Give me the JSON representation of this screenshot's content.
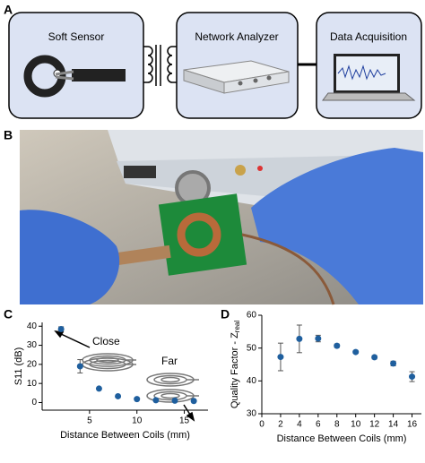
{
  "panels": [
    "A",
    "B",
    "C",
    "D"
  ],
  "diagram": {
    "boxes": [
      "Soft Sensor",
      "Network Analyzer",
      "Data Acquisition"
    ]
  },
  "chart_data": [
    {
      "type": "scatter",
      "color": "#1f5f9e",
      "xlabel": "Distance Between Coils (mm)",
      "ylabel": "S11 (dB)",
      "annotations": [
        "Close",
        "Far"
      ],
      "x": [
        2,
        4,
        6,
        8,
        10,
        12,
        14,
        16
      ],
      "values": [
        38.5,
        19,
        7.3,
        3.3,
        1.8,
        1.2,
        1.0,
        0.8
      ],
      "errors": [
        1.2,
        3.5,
        0.4,
        0.3,
        0.2,
        0.2,
        0.2,
        0.3
      ],
      "xlim": [
        0,
        17.5
      ],
      "xticks": [
        5,
        10,
        15
      ],
      "ylim": [
        -4,
        42
      ],
      "yticks": [
        0,
        10,
        20,
        30,
        40
      ]
    },
    {
      "type": "scatter",
      "color": "#1f5f9e",
      "xlabel": "Distance Between Coils (mm)",
      "ylabel": "Quality Factor - Z",
      "ylabel_sub": "real",
      "x": [
        2,
        4,
        6,
        8,
        10,
        12,
        14,
        16
      ],
      "values": [
        47.3,
        52.8,
        52.9,
        50.7,
        48.8,
        47.2,
        45.3,
        41.3
      ],
      "errors": [
        4.2,
        4.2,
        1.0,
        0.5,
        0.4,
        0.5,
        0.7,
        1.5
      ],
      "xlim": [
        0,
        17
      ],
      "xticks": [
        0,
        2,
        4,
        6,
        8,
        10,
        12,
        14,
        16
      ],
      "ylim": [
        30,
        60
      ],
      "yticks": [
        30,
        40,
        50,
        60
      ]
    }
  ]
}
